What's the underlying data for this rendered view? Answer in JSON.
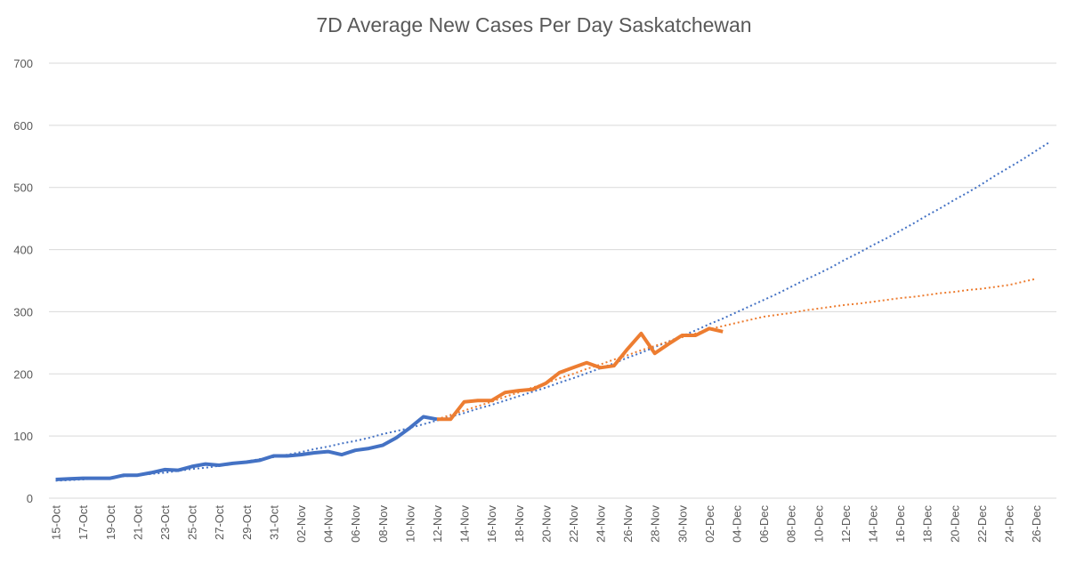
{
  "chart_data": {
    "type": "line",
    "title": "7D Average New Cases Per Day Saskatchewan",
    "categories": [
      "15-Oct",
      null,
      "17-Oct",
      null,
      "19-Oct",
      null,
      "21-Oct",
      null,
      "23-Oct",
      null,
      "25-Oct",
      null,
      "27-Oct",
      null,
      "29-Oct",
      null,
      "31-Oct",
      null,
      "02-Nov",
      null,
      "04-Nov",
      null,
      "06-Nov",
      null,
      "08-Nov",
      null,
      "10-Nov",
      null,
      "12-Nov",
      null,
      "14-Nov",
      null,
      "16-Nov",
      null,
      "18-Nov",
      null,
      "20-Nov",
      null,
      "22-Nov",
      null,
      "24-Nov",
      null,
      "26-Nov",
      null,
      "28-Nov",
      null,
      "30-Nov",
      null,
      "02-Dec",
      null,
      "04-Dec",
      null,
      "06-Dec",
      null,
      "08-Dec",
      null,
      "10-Dec",
      null,
      "12-Dec",
      null,
      "14-Dec",
      null,
      "16-Dec",
      null,
      "18-Dec",
      null,
      "20-Dec",
      null,
      "22-Dec",
      null,
      "24-Dec",
      null,
      "26-Dec",
      null
    ],
    "series": [
      {
        "color": "#4472c4",
        "dash": "dotted",
        "values": [
          28,
          29,
          30,
          32,
          33,
          35,
          37,
          39,
          41,
          44,
          47,
          49,
          52,
          56,
          59,
          63,
          66,
          70,
          74,
          79,
          83,
          88,
          92,
          97,
          103,
          108,
          113,
          119,
          125,
          131,
          137,
          144,
          150,
          157,
          164,
          171,
          178,
          186,
          193,
          201,
          209,
          217,
          226,
          234,
          243,
          252,
          261,
          270,
          280,
          289,
          299,
          309,
          319,
          329,
          340,
          351,
          361,
          372,
          384,
          395,
          407,
          418,
          430,
          442,
          455,
          467,
          480,
          492,
          505,
          519,
          532,
          545,
          559,
          573
        ]
      },
      {
        "color": "#ed7d31",
        "dash": "dotted",
        "values": [
          null,
          null,
          null,
          null,
          null,
          null,
          null,
          null,
          null,
          null,
          null,
          null,
          null,
          null,
          null,
          null,
          null,
          null,
          null,
          null,
          null,
          null,
          null,
          null,
          null,
          null,
          null,
          null,
          127,
          134,
          141,
          148,
          155,
          163,
          170,
          178,
          185,
          193,
          200,
          208,
          215,
          223,
          230,
          238,
          245,
          252,
          259,
          265,
          272,
          277,
          282,
          287,
          292,
          295,
          298,
          302,
          305,
          308,
          311,
          313,
          316,
          319,
          322,
          324,
          327,
          330,
          332,
          335,
          337,
          340,
          343,
          348,
          353,
          null
        ]
      },
      {
        "color": "#4472c4",
        "dash": "solid",
        "values": [
          30,
          31,
          32,
          32,
          32,
          37,
          37,
          41,
          46,
          45,
          51,
          55,
          53,
          56,
          58,
          61,
          68,
          68,
          70,
          73,
          75,
          70,
          77,
          80,
          85,
          97,
          113,
          131,
          127,
          null,
          null,
          null,
          null,
          null,
          null,
          null,
          null,
          null,
          null,
          null,
          null,
          null,
          null,
          null,
          null,
          null,
          null,
          null,
          null,
          null,
          null,
          null,
          null,
          null,
          null,
          null,
          null,
          null,
          null,
          null,
          null,
          null,
          null,
          null,
          null,
          null,
          null,
          null,
          null,
          null,
          null,
          null,
          null,
          null
        ]
      },
      {
        "color": "#ed7d31",
        "dash": "solid",
        "values": [
          null,
          null,
          null,
          null,
          null,
          null,
          null,
          null,
          null,
          null,
          null,
          null,
          null,
          null,
          null,
          null,
          null,
          null,
          null,
          null,
          null,
          null,
          null,
          null,
          null,
          null,
          null,
          null,
          127,
          127,
          155,
          157,
          157,
          170,
          173,
          175,
          185,
          202,
          210,
          218,
          210,
          213,
          240,
          265,
          233,
          248,
          262,
          262,
          273,
          268,
          null,
          null,
          null,
          null,
          null,
          null,
          null,
          null,
          null,
          null,
          null,
          null,
          null,
          null,
          null,
          null,
          null,
          null,
          null,
          null,
          null,
          null,
          null,
          null
        ]
      }
    ],
    "ylim": [
      0,
      700
    ],
    "yticks": [
      0,
      100,
      200,
      300,
      400,
      500,
      600,
      700
    ],
    "grid": true
  }
}
